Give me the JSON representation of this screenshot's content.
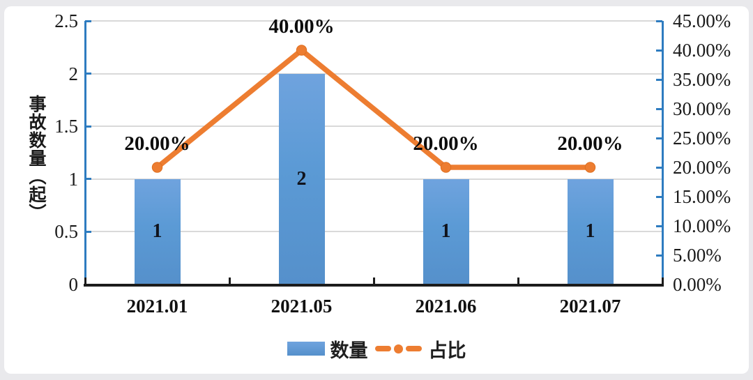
{
  "page": {
    "background": "#e9e9ec",
    "card_background": "#ffffff"
  },
  "colors": {
    "axis_blue": "#2e7cc0",
    "axis_dark": "#1c1c1c",
    "gridline": "#d9d9d9",
    "bar_blue": "#5B9BD5",
    "line_orange": "#ED7D31",
    "text": "#111111"
  },
  "chart_data": {
    "type": "combo-bar-line",
    "title": "",
    "categories": [
      "2021.01",
      "2021.05",
      "2021.06",
      "2021.07"
    ],
    "series": [
      {
        "name": "数量",
        "type": "bar",
        "axis": "left",
        "values": [
          1,
          2,
          1,
          1
        ],
        "data_labels": [
          "1",
          "2",
          "1",
          "1"
        ],
        "color": "#5B9BD5"
      },
      {
        "name": "占比",
        "type": "line",
        "axis": "right",
        "values": [
          20,
          40,
          20,
          20
        ],
        "data_labels": [
          "20.00%",
          "40.00%",
          "20.00%",
          "20.00%"
        ],
        "color": "#ED7D31"
      }
    ],
    "left_axis": {
      "label": "事故数量（起）",
      "min": 0,
      "max": 2.5,
      "step": 0.5,
      "ticks": [
        "0",
        "0.5",
        "1",
        "1.5",
        "2",
        "2.5"
      ]
    },
    "right_axis": {
      "label": "",
      "min": 0,
      "max": 45,
      "step": 5,
      "ticks": [
        "0.00%",
        "5.00%",
        "10.00%",
        "15.00%",
        "20.00%",
        "25.00%",
        "30.00%",
        "35.00%",
        "40.00%",
        "45.00%"
      ]
    },
    "grid": true,
    "legend_position": "bottom",
    "legend": {
      "items": [
        {
          "label": "数量",
          "marker": "bar-swatch",
          "color": "#5B9BD5"
        },
        {
          "label": "占比",
          "marker": "line-dash-dot",
          "color": "#ED7D31"
        }
      ]
    }
  }
}
